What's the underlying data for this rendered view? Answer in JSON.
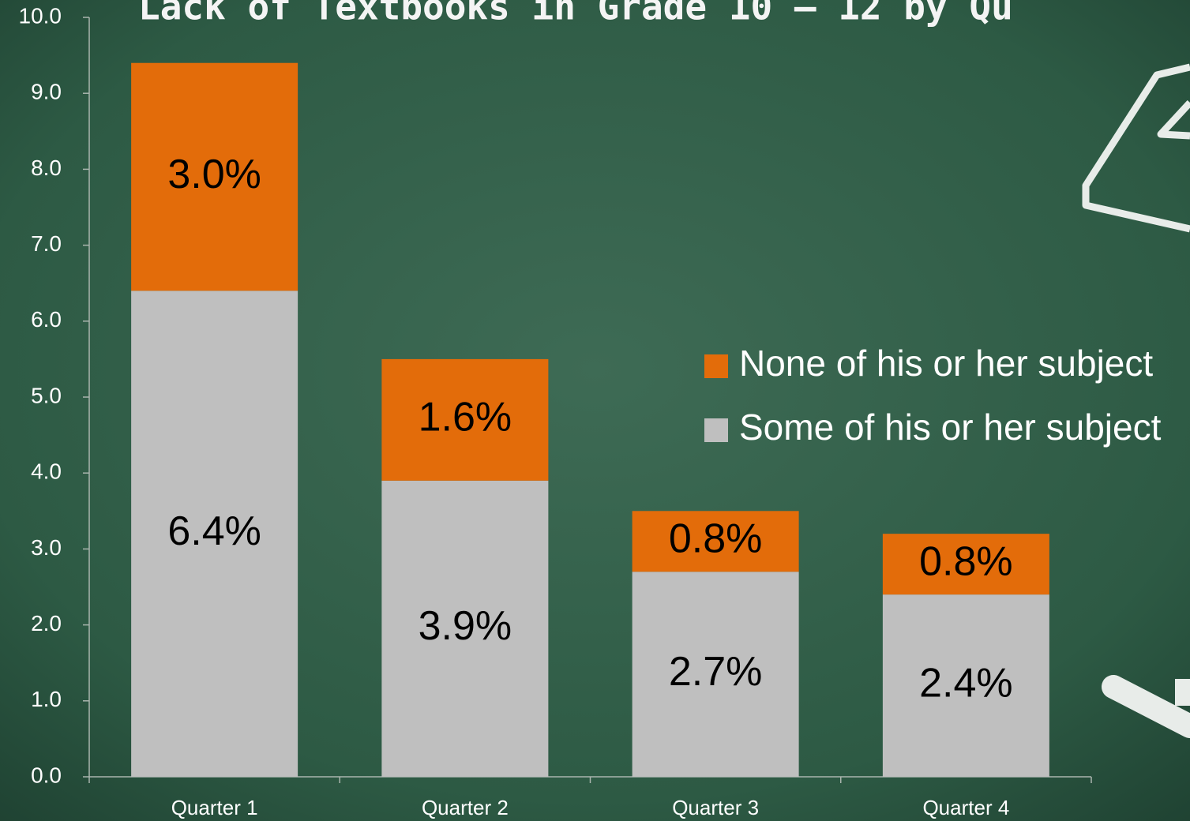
{
  "chart_data": {
    "type": "stacked_bar",
    "title": "Lack of Textbooks in Grade 10 – 12 by Qu",
    "categories": [
      "Quarter 1",
      "Quarter 2",
      "Quarter 3",
      "Quarter 4"
    ],
    "series": [
      {
        "name": "Some of his or her subject",
        "color": "#bfbfbf",
        "values": [
          6.4,
          3.9,
          2.7,
          2.4
        ],
        "value_labels": [
          "6.4%",
          "3.9%",
          "2.7%",
          "2.4%"
        ]
      },
      {
        "name": "None of his or her subject",
        "color": "#e36c0a",
        "values": [
          3.0,
          1.6,
          0.8,
          0.8
        ],
        "value_labels": [
          "3.0%",
          "1.6%",
          "0.8%",
          "0.8%"
        ]
      }
    ],
    "ylim": [
      0,
      10
    ],
    "yticks": [
      {
        "value": 0,
        "label": "0.0"
      },
      {
        "value": 1,
        "label": "1.0"
      },
      {
        "value": 2,
        "label": "2.0"
      },
      {
        "value": 3,
        "label": "3.0"
      },
      {
        "value": 4,
        "label": "4.0"
      },
      {
        "value": 5,
        "label": "5.0"
      },
      {
        "value": 6,
        "label": "6.0"
      },
      {
        "value": 7,
        "label": "7.0"
      },
      {
        "value": 8,
        "label": "8.0"
      },
      {
        "value": 9,
        "label": "9.0"
      },
      {
        "value": 10,
        "label": "10.0"
      }
    ],
    "legend": "right"
  }
}
